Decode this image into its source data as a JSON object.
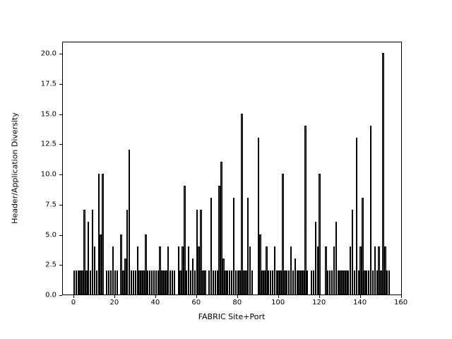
{
  "figure": {
    "background": "#ffffff",
    "bar_fill": "#474747",
    "bar_edge": "#000000"
  },
  "chart_data": {
    "type": "bar",
    "title": "",
    "xlabel": "FABRIC Site+Port",
    "ylabel": "Header/Application Diversity",
    "xlim": [
      -5.5,
      160.5
    ],
    "ylim": [
      0,
      21
    ],
    "grid": false,
    "legend": "none",
    "xticks": [
      0,
      20,
      40,
      60,
      80,
      100,
      120,
      140,
      160
    ],
    "xtick_labels": [
      "0",
      "20",
      "40",
      "60",
      "80",
      "100",
      "120",
      "140",
      "160"
    ],
    "yticks": [
      0,
      2.5,
      5,
      7.5,
      10,
      12.5,
      15,
      17.5,
      20
    ],
    "ytick_labels": [
      "0.0",
      "2.5",
      "5.0",
      "7.5",
      "10.0",
      "12.5",
      "15.0",
      "17.5",
      "20.0"
    ],
    "x_start": 0,
    "values": [
      2,
      2,
      2,
      2,
      2,
      7,
      2,
      6,
      2,
      7,
      4,
      2,
      10,
      5,
      10,
      0,
      2,
      2,
      2,
      4,
      2,
      2,
      0,
      5,
      2,
      3,
      7,
      12,
      2,
      2,
      2,
      4,
      2,
      2,
      2,
      5,
      2,
      2,
      2,
      2,
      2,
      2,
      4,
      2,
      2,
      2,
      4,
      2,
      2,
      2,
      0,
      4,
      2,
      4,
      9,
      2,
      4,
      2,
      3,
      2,
      7,
      4,
      7,
      2,
      2,
      0,
      2,
      8,
      2,
      2,
      2,
      9,
      11,
      3,
      2,
      2,
      2,
      2,
      8,
      2,
      2,
      2,
      15,
      2,
      2,
      8,
      4,
      2,
      0,
      0,
      13,
      5,
      2,
      2,
      4,
      2,
      2,
      2,
      4,
      2,
      2,
      2,
      10,
      2,
      2,
      2,
      4,
      2,
      3,
      2,
      2,
      2,
      2,
      14,
      2,
      0,
      2,
      2,
      6,
      4,
      10,
      0,
      0,
      4,
      2,
      2,
      2,
      4,
      6,
      2,
      2,
      2,
      2,
      2,
      2,
      4,
      7,
      2,
      13,
      2,
      4,
      8,
      2,
      2,
      2,
      14,
      2,
      4,
      2,
      4,
      2,
      20,
      4,
      2,
      2
    ]
  }
}
